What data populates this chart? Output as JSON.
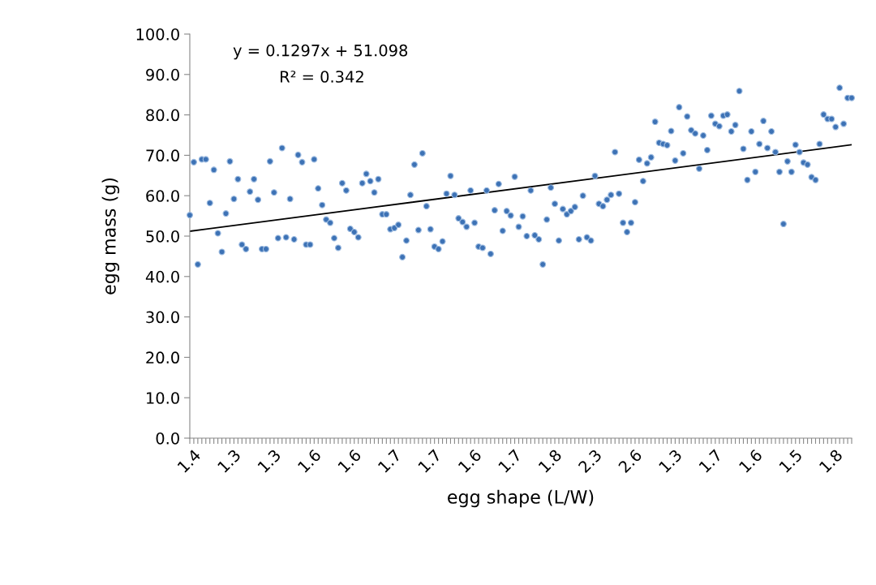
{
  "chart_data": {
    "type": "scatter",
    "xlabel": "egg shape (L/W)",
    "ylabel": "egg mass (g)",
    "categories": [
      "1.4",
      null,
      null,
      null,
      null,
      null,
      null,
      null,
      null,
      null,
      "1.3",
      null,
      null,
      null,
      null,
      null,
      null,
      null,
      null,
      null,
      "1.3",
      null,
      null,
      null,
      null,
      null,
      null,
      null,
      null,
      null,
      "1.6",
      null,
      null,
      null,
      null,
      null,
      null,
      null,
      null,
      null,
      "1.6",
      null,
      null,
      null,
      null,
      null,
      null,
      null,
      null,
      null,
      "1.7",
      null,
      null,
      null,
      null,
      null,
      null,
      null,
      null,
      null,
      "1.7",
      null,
      null,
      null,
      null,
      null,
      null,
      null,
      null,
      null,
      "1.6",
      null,
      null,
      null,
      null,
      null,
      null,
      null,
      null,
      null,
      "1.7",
      null,
      null,
      null,
      null,
      null,
      null,
      null,
      null,
      null,
      "1.8",
      null,
      null,
      null,
      null,
      null,
      null,
      null,
      null,
      null,
      "2.3",
      null,
      null,
      null,
      null,
      null,
      null,
      null,
      null,
      null,
      "2.6",
      null,
      null,
      null,
      null,
      null,
      null,
      null,
      null,
      null,
      "1.3",
      null,
      null,
      null,
      null,
      null,
      null,
      null,
      null,
      null,
      "1.7",
      null,
      null,
      null,
      null,
      null,
      null,
      null,
      null,
      null,
      "1.6",
      null,
      null,
      null,
      null,
      null,
      null,
      null,
      null,
      null,
      "1.5",
      null,
      null,
      null,
      null,
      null,
      null,
      null,
      null,
      null,
      "1.8",
      null,
      null,
      null,
      null,
      null
    ],
    "series": [
      {
        "color": "#3d72b5",
        "marker": "circle",
        "values": [
          55.2,
          68.3,
          43,
          69.0,
          69.0,
          58.2,
          66.4,
          50.7,
          46.1,
          55.6,
          68.5,
          59.2,
          64.1,
          47.9,
          46.8,
          61,
          64.1,
          59,
          46.8,
          46.8,
          68.5,
          60.8,
          49.5,
          71.8,
          49.7,
          59.2,
          49.2,
          70.1,
          68.3,
          47.9,
          47.9,
          69.0,
          61.8,
          57.7,
          54.1,
          53.3,
          49.5,
          47.1,
          63.1,
          61.3,
          51.8,
          51,
          49.7,
          63.1,
          65.4,
          63.6,
          60.8,
          64.1,
          55.4,
          55.4,
          51.7,
          52,
          52.8,
          44.8,
          48.9,
          60.2,
          67.7,
          51.5,
          70.5,
          57.4,
          51.7,
          47.4,
          46.8,
          48.7,
          60.5,
          64.9,
          60.2,
          54.4,
          53.5,
          52.3,
          61.3,
          53.3,
          47.4,
          47.1,
          61.3,
          45.6,
          56.4,
          62.9,
          51.3,
          56.2,
          55.1,
          64.7,
          52.3,
          54.9,
          50,
          61.3,
          50.2,
          49.2,
          43,
          54.1,
          62,
          58,
          48.9,
          56.7,
          55.4,
          56.2,
          57.2,
          49.2,
          60,
          49.7,
          48.9,
          64.9,
          58,
          57.4,
          59,
          60.2,
          70.8,
          60.5,
          53.3,
          51,
          53.3,
          58.4,
          68.9,
          63.6,
          68,
          69.5,
          78.3,
          73.1,
          72.8,
          72.5,
          76,
          68.7,
          81.9,
          70.5,
          79.6,
          76.2,
          75.4,
          66.7,
          74.9,
          71.3,
          79.8,
          77.8,
          77.2,
          79.8,
          80.1,
          75.9,
          77.5,
          85.9,
          71.6,
          63.9,
          75.9,
          65.9,
          72.8,
          78.5,
          71.8,
          75.9,
          70.8,
          65.9,
          53,
          68.5,
          65.9,
          72.6,
          70.8,
          68.2,
          67.7,
          64.6,
          63.9,
          72.8,
          80.1,
          79,
          79,
          77,
          86.7,
          77.8,
          84.2,
          84.2
        ]
      },
      {
        "type": "line",
        "color": "#000000",
        "line_style": "solid",
        "values": [
          51.2,
          null,
          null,
          null,
          null,
          null,
          null,
          null,
          null,
          null,
          null,
          null,
          null,
          null,
          null,
          null,
          null,
          null,
          null,
          null,
          null,
          null,
          null,
          null,
          null,
          null,
          null,
          null,
          null,
          null,
          null,
          null,
          null,
          null,
          null,
          null,
          null,
          null,
          null,
          null,
          null,
          null,
          null,
          null,
          null,
          null,
          null,
          null,
          null,
          null,
          null,
          null,
          null,
          null,
          null,
          null,
          null,
          null,
          null,
          null,
          null,
          null,
          null,
          null,
          null,
          null,
          null,
          null,
          null,
          null,
          null,
          null,
          null,
          null,
          null,
          null,
          null,
          null,
          null,
          null,
          null,
          null,
          null,
          null,
          null,
          null,
          null,
          null,
          null,
          null,
          null,
          null,
          null,
          null,
          null,
          null,
          null,
          null,
          null,
          null,
          null,
          null,
          null,
          null,
          null,
          null,
          null,
          null,
          null,
          null,
          null,
          null,
          null,
          null,
          null,
          null,
          null,
          null,
          null,
          null,
          null,
          null,
          null,
          null,
          null,
          null,
          null,
          null,
          null,
          null,
          null,
          null,
          null,
          null,
          null,
          null,
          null,
          null,
          null,
          null,
          null,
          null,
          null,
          null,
          null,
          null,
          null,
          null,
          null,
          null,
          null,
          null,
          null,
          null,
          null,
          null,
          null,
          null,
          null,
          null,
          null,
          null,
          null,
          null,
          null,
          72.6
        ]
      }
    ],
    "ylim": [
      0,
      100
    ],
    "yticks": [
      {
        "value": 0,
        "label": "0.0"
      },
      {
        "value": 10,
        "label": "10.0"
      },
      {
        "value": 20,
        "label": "20.0"
      },
      {
        "value": 30,
        "label": "30.0"
      },
      {
        "value": 40,
        "label": "40.0"
      },
      {
        "value": 50,
        "label": "50.0"
      },
      {
        "value": 60,
        "label": "60.0"
      },
      {
        "value": 70,
        "label": "70.0"
      },
      {
        "value": 80,
        "label": "80.0"
      },
      {
        "value": 90,
        "label": "90.0"
      },
      {
        "value": 100,
        "label": "100.0"
      }
    ],
    "grid": false,
    "legend": false,
    "annotations": [
      "y = 0.1297x + 51.098",
      "R² = 0.342"
    ]
  }
}
